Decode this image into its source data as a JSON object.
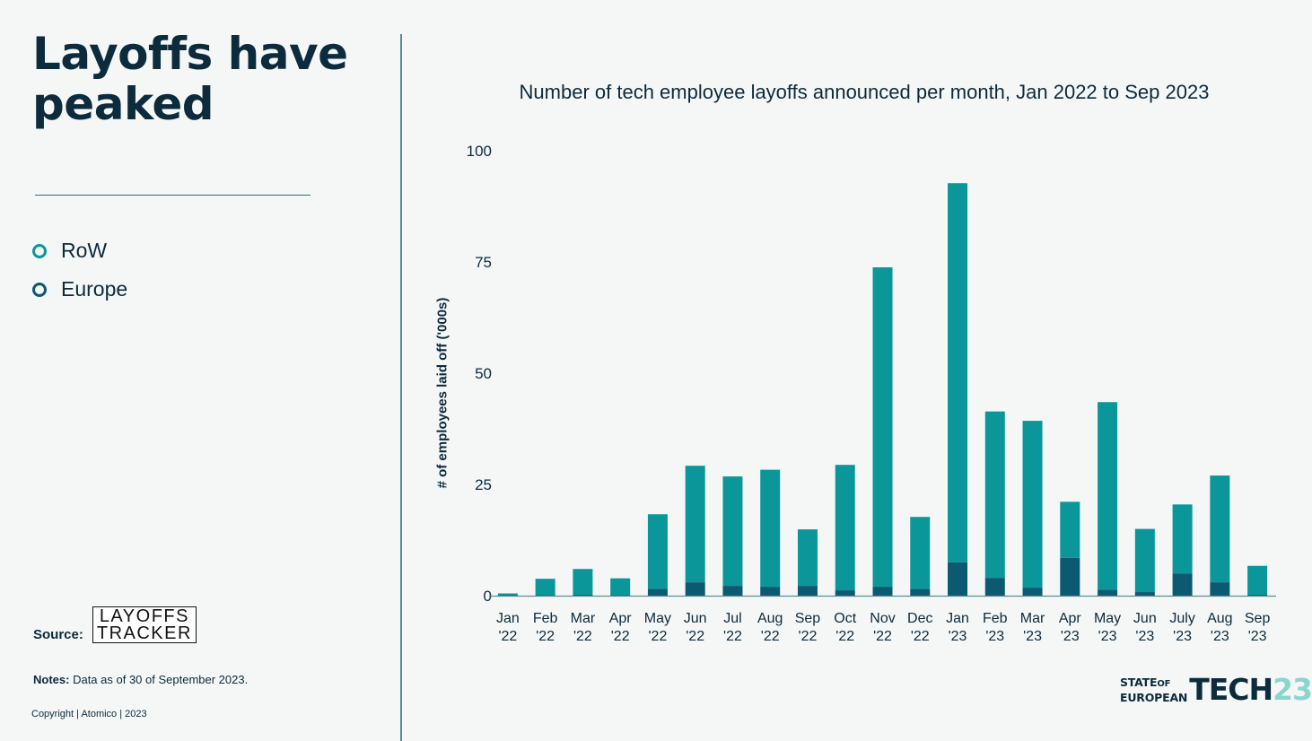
{
  "headline": "Layoffs have peaked",
  "legend": [
    {
      "label": "RoW",
      "color": "#0b979a"
    },
    {
      "label": "Europe",
      "color": "#0c5a72"
    }
  ],
  "source": {
    "label": "Source:",
    "logo_line1": "LAYOFFS",
    "logo_line2": "TRACKER"
  },
  "notes": {
    "label": "Notes:",
    "text": "Data as of 30 of September 2023."
  },
  "copyright": "Copyright | Atomico | 2023",
  "brand": {
    "line1": "STATE",
    "of": "OF",
    "line2": "EUROPEAN",
    "tech": "TECH",
    "year": "23"
  },
  "chart_data": {
    "type": "bar",
    "stacked": true,
    "title": "Number of tech employee layoffs announced per month, Jan 2022 to Sep 2023",
    "ylabel": "# of employees laid off ('000s)",
    "xlabel": "",
    "ylim": [
      0,
      100
    ],
    "yticks": [
      0,
      25,
      50,
      75,
      100
    ],
    "grid": false,
    "categories": [
      [
        "Jan",
        "'22"
      ],
      [
        "Feb",
        "'22"
      ],
      [
        "Mar",
        "'22"
      ],
      [
        "Apr",
        "'22"
      ],
      [
        "May",
        "'22"
      ],
      [
        "Jun",
        "'22"
      ],
      [
        "Jul",
        "'22"
      ],
      [
        "Aug",
        "'22"
      ],
      [
        "Sep",
        "'22"
      ],
      [
        "Oct",
        "'22"
      ],
      [
        "Nov",
        "'22"
      ],
      [
        "Dec",
        "'22"
      ],
      [
        "Jan",
        "'23"
      ],
      [
        "Feb",
        "'23"
      ],
      [
        "Mar",
        "'23"
      ],
      [
        "Apr",
        "'23"
      ],
      [
        "May",
        "'23"
      ],
      [
        "Jun",
        "'23"
      ],
      [
        "July",
        "'23"
      ],
      [
        "Aug",
        "'23"
      ],
      [
        "Sep",
        "'23"
      ]
    ],
    "series": [
      {
        "name": "Europe",
        "color": "#0c5a72",
        "values": [
          0.1,
          0.1,
          0.2,
          0.1,
          1.5,
          3.0,
          2.2,
          2.0,
          2.2,
          1.2,
          2.0,
          1.5,
          7.5,
          4.0,
          1.8,
          8.5,
          1.3,
          0.8,
          5.0,
          3.0,
          0.2
        ]
      },
      {
        "name": "RoW",
        "color": "#0b979a",
        "values": [
          0.4,
          3.7,
          5.8,
          3.8,
          16.8,
          26.2,
          24.6,
          26.3,
          12.7,
          28.2,
          71.8,
          16.2,
          85.2,
          37.4,
          37.5,
          12.6,
          42.2,
          14.2,
          15.5,
          24.0,
          6.5
        ]
      }
    ]
  }
}
